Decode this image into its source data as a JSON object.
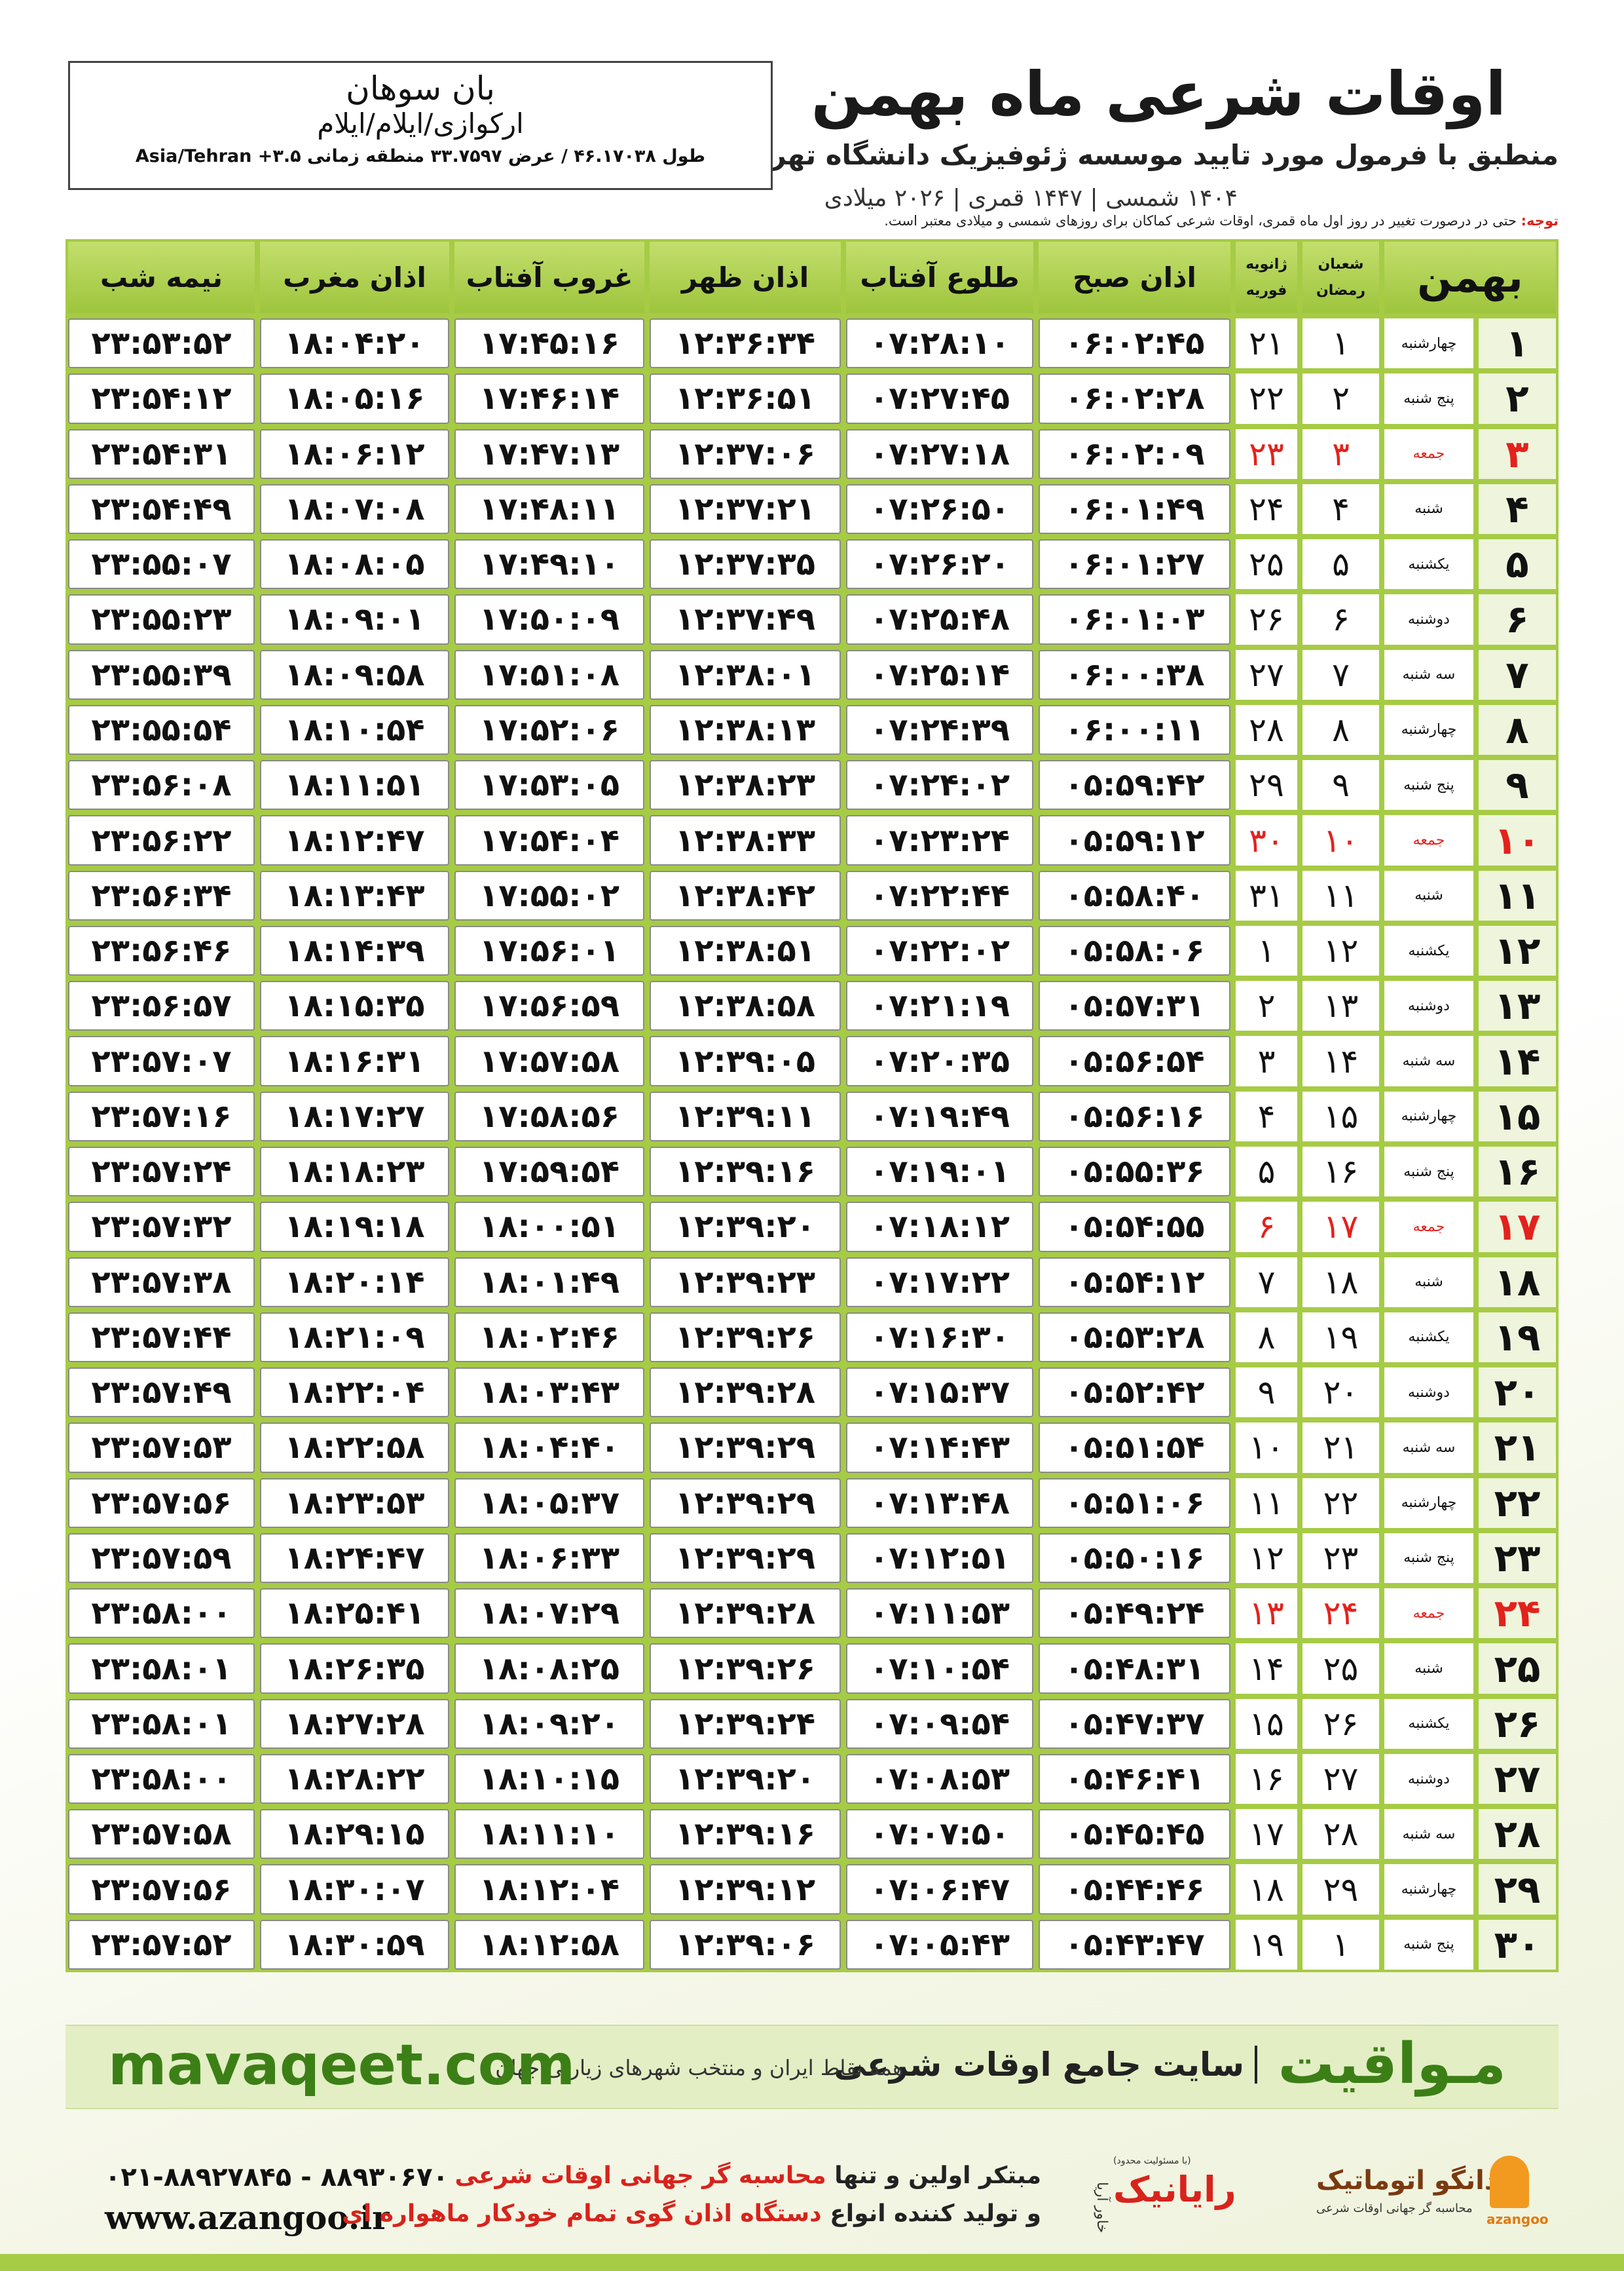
{
  "header": {
    "title": "اوقات شرعی ماه بهمن",
    "subtitle": "منطبق با فرمول مورد تایید موسسه ژئوفیزیک دانشگاه تهران",
    "calendar_years": "۱۴۰۴ شمسی | ۱۴۴۷ قمری | ۲۰۲۶ میلادی"
  },
  "location": {
    "name": "بان سوهان",
    "region": "ارکوازی/ایلام/ایلام",
    "coordinates": "طول ۴۶.۱۷۰۳۸ / عرض ۳۳.۷۵۹۷ منطقه زمانی ۳.۵+ Asia/Tehran"
  },
  "note": {
    "label": "توجه:",
    "text": "حتی در درصورت تغییر در روز اول ماه قمری، اوقات شرعی کماکان برای روزهای شمسی و میلادی معتبر است."
  },
  "table": {
    "columns": [
      "بهمن",
      [
        "شعبان",
        "رمضان"
      ],
      [
        "ژانویه",
        "فوریه"
      ],
      "اذان صبح",
      "طلوع آفتاب",
      "اذان ظهر",
      "غروب آفتاب",
      "اذان مغرب",
      "نیمه شب"
    ],
    "rows": [
      {
        "cells": [
          "۱",
          "چهارشنبه",
          "۱",
          "۲۱",
          "۰۶:۰۲:۴۵",
          "۰۷:۲۸:۱۰",
          "۱۲:۳۶:۳۴",
          "۱۷:۴۵:۱۶",
          "۱۸:۰۴:۲۰",
          "۲۳:۵۳:۵۲"
        ]
      },
      {
        "cells": [
          "۲",
          "پنج شنبه",
          "۲",
          "۲۲",
          "۰۶:۰۲:۲۸",
          "۰۷:۲۷:۴۵",
          "۱۲:۳۶:۵۱",
          "۱۷:۴۶:۱۴",
          "۱۸:۰۵:۱۶",
          "۲۳:۵۴:۱۲"
        ]
      },
      {
        "cells": [
          "۳",
          "جمعه",
          "۳",
          "۲۳",
          "۰۶:۰۲:۰۹",
          "۰۷:۲۷:۱۸",
          "۱۲:۳۷:۰۶",
          "۱۷:۴۷:۱۳",
          "۱۸:۰۶:۱۲",
          "۲۳:۵۴:۳۱"
        ],
        "color": "#e3221c"
      },
      {
        "cells": [
          "۴",
          "شنبه",
          "۴",
          "۲۴",
          "۰۶:۰۱:۴۹",
          "۰۷:۲۶:۵۰",
          "۱۲:۳۷:۲۱",
          "۱۷:۴۸:۱۱",
          "۱۸:۰۷:۰۸",
          "۲۳:۵۴:۴۹"
        ]
      },
      {
        "cells": [
          "۵",
          "یکشنبه",
          "۵",
          "۲۵",
          "۰۶:۰۱:۲۷",
          "۰۷:۲۶:۲۰",
          "۱۲:۳۷:۳۵",
          "۱۷:۴۹:۱۰",
          "۱۸:۰۸:۰۵",
          "۲۳:۵۵:۰۷"
        ]
      },
      {
        "cells": [
          "۶",
          "دوشنبه",
          "۶",
          "۲۶",
          "۰۶:۰۱:۰۳",
          "۰۷:۲۵:۴۸",
          "۱۲:۳۷:۴۹",
          "۱۷:۵۰:۰۹",
          "۱۸:۰۹:۰۱",
          "۲۳:۵۵:۲۳"
        ]
      },
      {
        "cells": [
          "۷",
          "سه شنبه",
          "۷",
          "۲۷",
          "۰۶:۰۰:۳۸",
          "۰۷:۲۵:۱۴",
          "۱۲:۳۸:۰۱",
          "۱۷:۵۱:۰۸",
          "۱۸:۰۹:۵۸",
          "۲۳:۵۵:۳۹"
        ]
      },
      {
        "cells": [
          "۸",
          "چهارشنبه",
          "۸",
          "۲۸",
          "۰۶:۰۰:۱۱",
          "۰۷:۲۴:۳۹",
          "۱۲:۳۸:۱۳",
          "۱۷:۵۲:۰۶",
          "۱۸:۱۰:۵۴",
          "۲۳:۵۵:۵۴"
        ]
      },
      {
        "cells": [
          "۹",
          "پنج شنبه",
          "۹",
          "۲۹",
          "۰۵:۵۹:۴۲",
          "۰۷:۲۴:۰۲",
          "۱۲:۳۸:۲۳",
          "۱۷:۵۳:۰۵",
          "۱۸:۱۱:۵۱",
          "۲۳:۵۶:۰۸"
        ]
      },
      {
        "cells": [
          "۱۰",
          "جمعه",
          "۱۰",
          "۳۰",
          "۰۵:۵۹:۱۲",
          "۰۷:۲۳:۲۴",
          "۱۲:۳۸:۳۳",
          "۱۷:۵۴:۰۴",
          "۱۸:۱۲:۴۷",
          "۲۳:۵۶:۲۲"
        ],
        "color": "#e3221c"
      },
      {
        "cells": [
          "۱۱",
          "شنبه",
          "۱۱",
          "۳۱",
          "۰۵:۵۸:۴۰",
          "۰۷:۲۲:۴۴",
          "۱۲:۳۸:۴۲",
          "۱۷:۵۵:۰۲",
          "۱۸:۱۳:۴۳",
          "۲۳:۵۶:۳۴"
        ]
      },
      {
        "cells": [
          "۱۲",
          "یکشنبه",
          "۱۲",
          "۱",
          "۰۵:۵۸:۰۶",
          "۰۷:۲۲:۰۲",
          "۱۲:۳۸:۵۱",
          "۱۷:۵۶:۰۱",
          "۱۸:۱۴:۳۹",
          "۲۳:۵۶:۴۶"
        ]
      },
      {
        "cells": [
          "۱۳",
          "دوشنبه",
          "۱۳",
          "۲",
          "۰۵:۵۷:۳۱",
          "۰۷:۲۱:۱۹",
          "۱۲:۳۸:۵۸",
          "۱۷:۵۶:۵۹",
          "۱۸:۱۵:۳۵",
          "۲۳:۵۶:۵۷"
        ]
      },
      {
        "cells": [
          "۱۴",
          "سه شنبه",
          "۱۴",
          "۳",
          "۰۵:۵۶:۵۴",
          "۰۷:۲۰:۳۵",
          "۱۲:۳۹:۰۵",
          "۱۷:۵۷:۵۸",
          "۱۸:۱۶:۳۱",
          "۲۳:۵۷:۰۷"
        ]
      },
      {
        "cells": [
          "۱۵",
          "چهارشنبه",
          "۱۵",
          "۴",
          "۰۵:۵۶:۱۶",
          "۰۷:۱۹:۴۹",
          "۱۲:۳۹:۱۱",
          "۱۷:۵۸:۵۶",
          "۱۸:۱۷:۲۷",
          "۲۳:۵۷:۱۶"
        ]
      },
      {
        "cells": [
          "۱۶",
          "پنج شنبه",
          "۱۶",
          "۵",
          "۰۵:۵۵:۳۶",
          "۰۷:۱۹:۰۱",
          "۱۲:۳۹:۱۶",
          "۱۷:۵۹:۵۴",
          "۱۸:۱۸:۲۳",
          "۲۳:۵۷:۲۴"
        ]
      },
      {
        "cells": [
          "۱۷",
          "جمعه",
          "۱۷",
          "۶",
          "۰۵:۵۴:۵۵",
          "۰۷:۱۸:۱۲",
          "۱۲:۳۹:۲۰",
          "۱۸:۰۰:۵۱",
          "۱۸:۱۹:۱۸",
          "۲۳:۵۷:۳۲"
        ],
        "color": "#e3221c"
      },
      {
        "cells": [
          "۱۸",
          "شنبه",
          "۱۸",
          "۷",
          "۰۵:۵۴:۱۲",
          "۰۷:۱۷:۲۲",
          "۱۲:۳۹:۲۳",
          "۱۸:۰۱:۴۹",
          "۱۸:۲۰:۱۴",
          "۲۳:۵۷:۳۸"
        ]
      },
      {
        "cells": [
          "۱۹",
          "یکشنبه",
          "۱۹",
          "۸",
          "۰۵:۵۳:۲۸",
          "۰۷:۱۶:۳۰",
          "۱۲:۳۹:۲۶",
          "۱۸:۰۲:۴۶",
          "۱۸:۲۱:۰۹",
          "۲۳:۵۷:۴۴"
        ]
      },
      {
        "cells": [
          "۲۰",
          "دوشنبه",
          "۲۰",
          "۹",
          "۰۵:۵۲:۴۲",
          "۰۷:۱۵:۳۷",
          "۱۲:۳۹:۲۸",
          "۱۸:۰۳:۴۳",
          "۱۸:۲۲:۰۴",
          "۲۳:۵۷:۴۹"
        ]
      },
      {
        "cells": [
          "۲۱",
          "سه شنبه",
          "۲۱",
          "۱۰",
          "۰۵:۵۱:۵۴",
          "۰۷:۱۴:۴۳",
          "۱۲:۳۹:۲۹",
          "۱۸:۰۴:۴۰",
          "۱۸:۲۲:۵۸",
          "۲۳:۵۷:۵۳"
        ]
      },
      {
        "cells": [
          "۲۲",
          "چهارشنبه",
          "۲۲",
          "۱۱",
          "۰۵:۵۱:۰۶",
          "۰۷:۱۳:۴۸",
          "۱۲:۳۹:۲۹",
          "۱۸:۰۵:۳۷",
          "۱۸:۲۳:۵۳",
          "۲۳:۵۷:۵۶"
        ]
      },
      {
        "cells": [
          "۲۳",
          "پنج شنبه",
          "۲۳",
          "۱۲",
          "۰۵:۵۰:۱۶",
          "۰۷:۱۲:۵۱",
          "۱۲:۳۹:۲۹",
          "۱۸:۰۶:۳۳",
          "۱۸:۲۴:۴۷",
          "۲۳:۵۷:۵۹"
        ]
      },
      {
        "cells": [
          "۲۴",
          "جمعه",
          "۲۴",
          "۱۳",
          "۰۵:۴۹:۲۴",
          "۰۷:۱۱:۵۳",
          "۱۲:۳۹:۲۸",
          "۱۸:۰۷:۲۹",
          "۱۸:۲۵:۴۱",
          "۲۳:۵۸:۰۰"
        ],
        "color": "#e3221c"
      },
      {
        "cells": [
          "۲۵",
          "شنبه",
          "۲۵",
          "۱۴",
          "۰۵:۴۸:۳۱",
          "۰۷:۱۰:۵۴",
          "۱۲:۳۹:۲۶",
          "۱۸:۰۸:۲۵",
          "۱۸:۲۶:۳۵",
          "۲۳:۵۸:۰۱"
        ]
      },
      {
        "cells": [
          "۲۶",
          "یکشنبه",
          "۲۶",
          "۱۵",
          "۰۵:۴۷:۳۷",
          "۰۷:۰۹:۵۴",
          "۱۲:۳۹:۲۴",
          "۱۸:۰۹:۲۰",
          "۱۸:۲۷:۲۸",
          "۲۳:۵۸:۰۱"
        ]
      },
      {
        "cells": [
          "۲۷",
          "دوشنبه",
          "۲۷",
          "۱۶",
          "۰۵:۴۶:۴۱",
          "۰۷:۰۸:۵۳",
          "۱۲:۳۹:۲۰",
          "۱۸:۱۰:۱۵",
          "۱۸:۲۸:۲۲",
          "۲۳:۵۸:۰۰"
        ]
      },
      {
        "cells": [
          "۲۸",
          "سه شنبه",
          "۲۸",
          "۱۷",
          "۰۵:۴۵:۴۵",
          "۰۷:۰۷:۵۰",
          "۱۲:۳۹:۱۶",
          "۱۸:۱۱:۱۰",
          "۱۸:۲۹:۱۵",
          "۲۳:۵۷:۵۸"
        ]
      },
      {
        "cells": [
          "۲۹",
          "چهارشنبه",
          "۲۹",
          "۱۸",
          "۰۵:۴۴:۴۶",
          "۰۷:۰۶:۴۷",
          "۱۲:۳۹:۱۲",
          "۱۸:۱۲:۰۴",
          "۱۸:۳۰:۰۷",
          "۲۳:۵۷:۵۶"
        ]
      },
      {
        "cells": [
          "۳۰",
          "پنج شنبه",
          "۱",
          "۱۹",
          "۰۵:۴۳:۴۷",
          "۰۷:۰۵:۴۳",
          "۱۲:۳۹:۰۶",
          "۱۸:۱۲:۵۸",
          "۱۸:۳۰:۵۹",
          "۲۳:۵۷:۵۲"
        ]
      }
    ]
  },
  "banner": {
    "brand": "مـواقیت",
    "slogan": "سایت جامع اوقات شرعی",
    "coverage": "همه نقاط ایران و منتخب شهرهای زیارتی جهان",
    "url": "mavaqeet.com"
  },
  "footer": {
    "phones": "۰۲۱-۸۸۹۲۷۸۴۵ - ۸۸۹۳۰۶۷۰",
    "website": "www.azangoo.ir",
    "line1_a": "مبتکر اولین و تنها",
    "line1_b": "محاسبه گر جهانی اوقات شرعی",
    "line2_a": "و تولید کننده انواع",
    "line2_b": "دستگاه اذان گوی تمام خودکار ماهواره ای",
    "rayanik": "رایانیک",
    "rayanik_note": "(با مسئولیت محدود)",
    "khavar": "خاور آریا",
    "azangoo_fa": "اذانگو اتوماتیک",
    "azangoo_tag": "محاسبه گر جهانی اوقات شرعی",
    "azangoo_en": "azangoo"
  }
}
